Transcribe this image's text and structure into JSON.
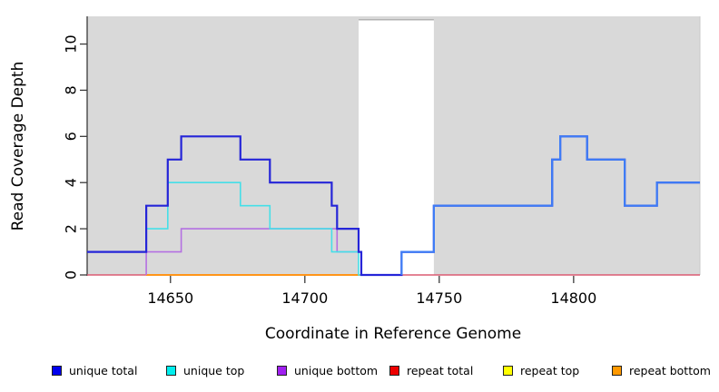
{
  "figure": {
    "xlabel": "Coordinate in Reference Genome",
    "ylabel": "Read Coverage Depth"
  },
  "chart_data": {
    "type": "line",
    "subtype": "step-coverage",
    "title": "",
    "xlabel": "Coordinate in Reference Genome",
    "ylabel": "Read Coverage Depth",
    "xlim": [
      14619,
      14847
    ],
    "ylim": [
      0,
      11.2
    ],
    "x_ticks": [
      14650,
      14700,
      14750,
      14800
    ],
    "y_ticks": [
      0,
      2,
      4,
      6,
      8,
      10
    ],
    "grid": false,
    "background_shading": {
      "color": "#d9d9d9",
      "regions": [
        [
          14619,
          14720
        ],
        [
          14748,
          14847
        ]
      ],
      "white_gap": {
        "from": 14720,
        "to": 14748,
        "top_value": 11.05,
        "border_color": "#9b9b9b"
      }
    },
    "series": [
      {
        "name": "repeat total",
        "legend_color": "#ee0000",
        "line_color": "#dc5b72",
        "width": 1.6,
        "points": [
          [
            14619,
            0
          ],
          [
            14847,
            0
          ]
        ]
      },
      {
        "name": "repeat top",
        "legend_color": "#ffff00",
        "line_color": "#f5e626",
        "width": 1.6,
        "points": [
          [
            14641,
            0
          ],
          [
            14721,
            0
          ]
        ]
      },
      {
        "name": "repeat bottom",
        "legend_color": "#ff9900",
        "line_color": "#ff9519",
        "width": 2,
        "points": [
          [
            14641,
            0
          ],
          [
            14721,
            0
          ]
        ]
      },
      {
        "name": "unique bottom",
        "legend_color": "#a020f0",
        "line_color": "#b470e2",
        "width": 1.6,
        "points": [
          [
            14641,
            0
          ],
          [
            14641,
            1
          ],
          [
            14654,
            1
          ],
          [
            14654,
            2
          ],
          [
            14712,
            2
          ],
          [
            14712,
            1
          ],
          [
            14721,
            1
          ],
          [
            14721,
            0
          ]
        ]
      },
      {
        "name": "unique top",
        "legend_color": "#00eeee",
        "line_color": "#45dfe8",
        "width": 1.6,
        "points": [
          [
            14619,
            1
          ],
          [
            14641,
            1
          ],
          [
            14641,
            2
          ],
          [
            14649,
            2
          ],
          [
            14649,
            4
          ],
          [
            14676,
            4
          ],
          [
            14676,
            3
          ],
          [
            14687,
            3
          ],
          [
            14687,
            2
          ],
          [
            14710,
            2
          ],
          [
            14710,
            1
          ],
          [
            14720,
            1
          ],
          [
            14720,
            0
          ],
          [
            14736,
            0
          ],
          [
            14736,
            1
          ],
          [
            14748,
            1
          ],
          [
            14748,
            3
          ],
          [
            14792,
            3
          ],
          [
            14792,
            5
          ],
          [
            14795,
            5
          ],
          [
            14795,
            6
          ],
          [
            14805,
            6
          ],
          [
            14805,
            5
          ],
          [
            14819,
            5
          ],
          [
            14819,
            3
          ],
          [
            14831,
            3
          ],
          [
            14831,
            4
          ],
          [
            14847,
            4
          ]
        ]
      },
      {
        "name": "unique total",
        "legend_color": "#0000ee",
        "line_color": "#2525d8",
        "width": 2.2,
        "points": [
          [
            14619,
            1
          ],
          [
            14641,
            1
          ],
          [
            14641,
            3
          ],
          [
            14649,
            3
          ],
          [
            14649,
            5
          ],
          [
            14654,
            5
          ],
          [
            14654,
            6
          ],
          [
            14676,
            6
          ],
          [
            14676,
            5
          ],
          [
            14687,
            5
          ],
          [
            14687,
            4
          ],
          [
            14710,
            4
          ],
          [
            14710,
            3
          ],
          [
            14712,
            3
          ],
          [
            14712,
            2
          ],
          [
            14720,
            2
          ],
          [
            14720,
            1
          ],
          [
            14721,
            1
          ],
          [
            14721,
            0
          ],
          [
            14736,
            0
          ],
          [
            14736,
            1
          ],
          [
            14748,
            1
          ],
          [
            14748,
            3
          ],
          [
            14792,
            3
          ],
          [
            14792,
            5
          ],
          [
            14795,
            5
          ],
          [
            14795,
            6
          ],
          [
            14805,
            6
          ],
          [
            14805,
            5
          ],
          [
            14819,
            5
          ],
          [
            14819,
            3
          ],
          [
            14831,
            3
          ],
          [
            14831,
            4
          ],
          [
            14847,
            4
          ]
        ]
      }
    ],
    "overlap_overlay": {
      "note": "unique total and unique top coincide right of the gap; rendered azure",
      "line_color": "#3e7cf6",
      "width": 2.2,
      "points": [
        [
          14736,
          0
        ],
        [
          14736,
          1
        ],
        [
          14748,
          1
        ],
        [
          14748,
          3
        ],
        [
          14792,
          3
        ],
        [
          14792,
          5
        ],
        [
          14795,
          5
        ],
        [
          14795,
          6
        ],
        [
          14805,
          6
        ],
        [
          14805,
          5
        ],
        [
          14819,
          5
        ],
        [
          14819,
          3
        ],
        [
          14831,
          3
        ],
        [
          14831,
          4
        ],
        [
          14847,
          4
        ]
      ]
    }
  },
  "legend": {
    "items": [
      {
        "label": "unique total",
        "color": "#0000ee"
      },
      {
        "label": "unique top",
        "color": "#00eeee"
      },
      {
        "label": "unique bottom",
        "color": "#a020f0"
      },
      {
        "label": "repeat total",
        "color": "#ee0000"
      },
      {
        "label": "repeat top",
        "color": "#ffff00"
      },
      {
        "label": "repeat bottom",
        "color": "#ff9900"
      }
    ]
  }
}
